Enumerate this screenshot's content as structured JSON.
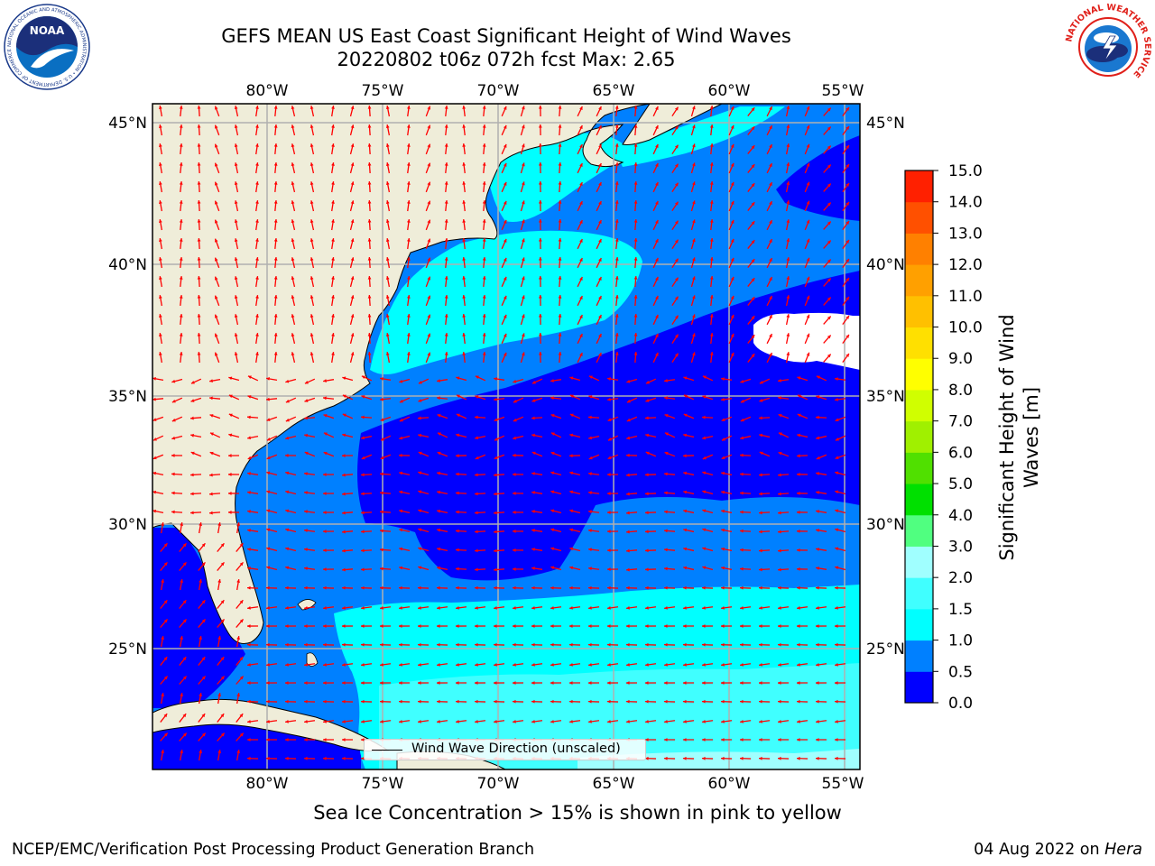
{
  "header": {
    "title_line1": "GEFS MEAN US East Coast Significant Height of Wind Waves",
    "title_line2": "20220802 t06z 072h fcst   Max: 2.65"
  },
  "logos": {
    "noaa_text": "NOAA",
    "noaa_ring_text": "NATIONAL OCEANIC AND ATMOSPHERIC ADMINISTRATION • U.S. DEPARTMENT OF COMMERCE",
    "nws_ring_text": "NATIONAL WEATHER SERVICE"
  },
  "map": {
    "lon_ticks": [
      "80°W",
      "75°W",
      "70°W",
      "65°W",
      "60°W",
      "55°W"
    ],
    "lon_values": [
      -80,
      -75,
      -70,
      -65,
      -60,
      -55
    ],
    "lat_ticks": [
      "45°N",
      "40°N",
      "35°N",
      "30°N",
      "25°N"
    ],
    "lat_values": [
      45,
      40,
      35,
      30,
      25
    ],
    "extent": {
      "lon_min": -85,
      "lon_max": -54.3,
      "lat_min": 20.5,
      "lat_max": 45.8
    },
    "land_color": "#efedd9",
    "grid": true,
    "vector_color": "#ff0000"
  },
  "legend": {
    "label": "Wind Wave Direction (unscaled)"
  },
  "colorbar": {
    "label_line1": "Significant Height of Wind",
    "label_line2": "Waves [m]",
    "ticks": [
      "0.0",
      "0.5",
      "1.0",
      "1.5",
      "2.0",
      "3.0",
      "4.0",
      "5.0",
      "6.0",
      "7.0",
      "8.0",
      "9.0",
      "10.0",
      "11.0",
      "12.0",
      "13.0",
      "14.0",
      "15.0"
    ],
    "colors": [
      "#0000ff",
      "#0080ff",
      "#00ffff",
      "#40ffff",
      "#a0ffff",
      "#50ff80",
      "#00e000",
      "#50e000",
      "#a0f000",
      "#d0ff00",
      "#ffff00",
      "#ffe000",
      "#ffc000",
      "#ffa000",
      "#ff8000",
      "#ff5000",
      "#ff2000"
    ]
  },
  "footer": {
    "note": "Sea Ice Concentration > 15% is shown in pink to yellow",
    "credit": "NCEP/EMC/Verification Post Processing Product Generation Branch",
    "date": "04 Aug 2022 on ",
    "host": "Hera"
  }
}
